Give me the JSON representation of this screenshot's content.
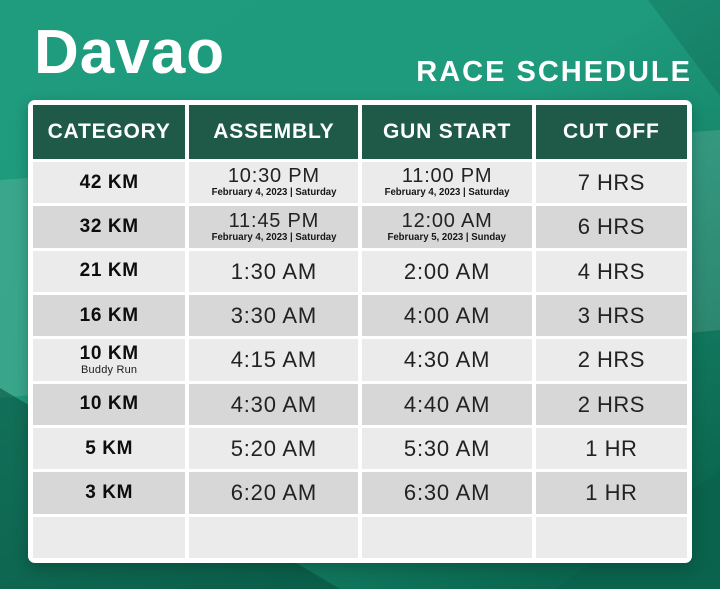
{
  "header": {
    "city": "Davao",
    "title": "RACE SCHEDULE"
  },
  "table": {
    "columns": [
      "CATEGORY",
      "ASSEMBLY",
      "GUN START",
      "CUT OFF"
    ],
    "rows": [
      {
        "category": "42 KM",
        "category_sub": "",
        "assembly": "10:30 PM",
        "assembly_date": "February 4, 2023 | Saturday",
        "gun_start": "11:00 PM",
        "gun_start_date": "February 4, 2023 | Saturday",
        "cut_off": "7 HRS"
      },
      {
        "category": "32 KM",
        "category_sub": "",
        "assembly": "11:45 PM",
        "assembly_date": "February 4, 2023 | Saturday",
        "gun_start": "12:00 AM",
        "gun_start_date": "February 5, 2023 | Sunday",
        "cut_off": "6 HRS"
      },
      {
        "category": "21 KM",
        "category_sub": "",
        "assembly": "1:30 AM",
        "assembly_date": "",
        "gun_start": "2:00 AM",
        "gun_start_date": "",
        "cut_off": "4 HRS"
      },
      {
        "category": "16 KM",
        "category_sub": "",
        "assembly": "3:30 AM",
        "assembly_date": "",
        "gun_start": "4:00 AM",
        "gun_start_date": "",
        "cut_off": "3 HRS"
      },
      {
        "category": "10 KM",
        "category_sub": "Buddy Run",
        "assembly": "4:15 AM",
        "assembly_date": "",
        "gun_start": "4:30 AM",
        "gun_start_date": "",
        "cut_off": "2 HRS"
      },
      {
        "category": "10 KM",
        "category_sub": "",
        "assembly": "4:30 AM",
        "assembly_date": "",
        "gun_start": "4:40 AM",
        "gun_start_date": "",
        "cut_off": "2 HRS"
      },
      {
        "category": "5 KM",
        "category_sub": "",
        "assembly": "5:20 AM",
        "assembly_date": "",
        "gun_start": "5:30 AM",
        "gun_start_date": "",
        "cut_off": "1 HR"
      },
      {
        "category": "3 KM",
        "category_sub": "",
        "assembly": "6:20 AM",
        "assembly_date": "",
        "gun_start": "6:30 AM",
        "gun_start_date": "",
        "cut_off": "1 HR"
      },
      {
        "category": "",
        "category_sub": "",
        "assembly": "",
        "assembly_date": "",
        "gun_start": "",
        "gun_start_date": "",
        "cut_off": ""
      }
    ]
  },
  "colors": {
    "background_teal": "#1f9c7e",
    "background_dark": "#0b6750",
    "header_green": "#1f5a49",
    "row_light": "#ebebeb",
    "row_dark": "#d7d7d7",
    "text_dark": "#222222",
    "white": "#ffffff"
  }
}
